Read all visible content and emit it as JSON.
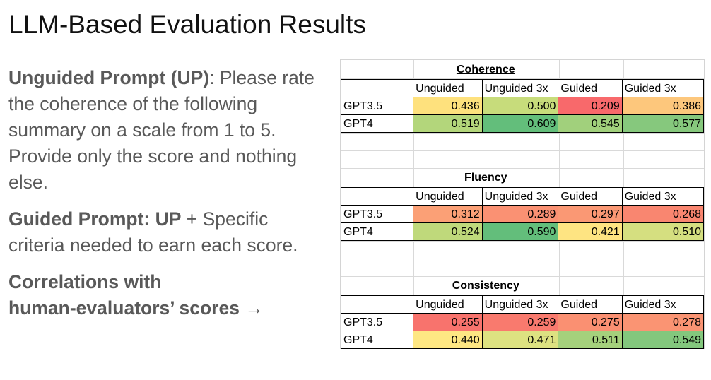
{
  "slide": {
    "title": "LLM-Based Evaluation Results"
  },
  "left": {
    "up_label": "Unguided Prompt (UP)",
    "up_text": ": Please rate the coherence of the following summary on a scale from 1 to 5. Provide only the score and nothing else.",
    "guided_label": "Guided Prompt: UP",
    "guided_text": " + Specific criteria needed to earn each score.",
    "correlations_line1": "Correlations with",
    "correlations_line2": "human-evaluators’ scores →"
  },
  "columns": [
    "Unguided",
    "Unguided 3x",
    "Guided",
    "Guided 3x"
  ],
  "colors": {
    "0.436": "#fee17d",
    "0.500": "#c7dc7b",
    "0.209": "#f8696b",
    "0.386": "#fdc77c",
    "0.519": "#b3d67b",
    "0.609": "#63be7b",
    "0.545": "#a1d07c",
    "0.577": "#86c87d",
    "0.312": "#fba076",
    "0.289": "#fa9173",
    "0.297": "#fa9874",
    "0.268": "#f98670",
    "0.524": "#bfd97b",
    "0.590": "#63be7b",
    "0.421": "#fee482",
    "0.510": "#d5df80",
    "0.255": "#f8736d",
    "0.259": "#f97a6e",
    "0.275": "#fa9072",
    "0.278": "#fa9473",
    "0.440": "#fee783",
    "0.471": "#dde281",
    "0.511": "#a5d17c",
    "0.549": "#83c77d"
  },
  "tables": [
    {
      "title": "Coherence",
      "rows": [
        {
          "label": "GPT3.5",
          "values": [
            "0.436",
            "0.500",
            "0.209",
            "0.386"
          ]
        },
        {
          "label": "GPT4",
          "values": [
            "0.519",
            "0.609",
            "0.545",
            "0.577"
          ]
        }
      ]
    },
    {
      "title": "Fluency",
      "rows": [
        {
          "label": "GPT3.5",
          "values": [
            "0.312",
            "0.289",
            "0.297",
            "0.268"
          ]
        },
        {
          "label": "GPT4",
          "values": [
            "0.524",
            "0.590",
            "0.421",
            "0.510"
          ]
        }
      ]
    },
    {
      "title": "Consistency",
      "rows": [
        {
          "label": "GPT3.5",
          "values": [
            "0.255",
            "0.259",
            "0.275",
            "0.278"
          ]
        },
        {
          "label": "GPT4",
          "values": [
            "0.440",
            "0.471",
            "0.511",
            "0.549"
          ]
        }
      ]
    }
  ]
}
